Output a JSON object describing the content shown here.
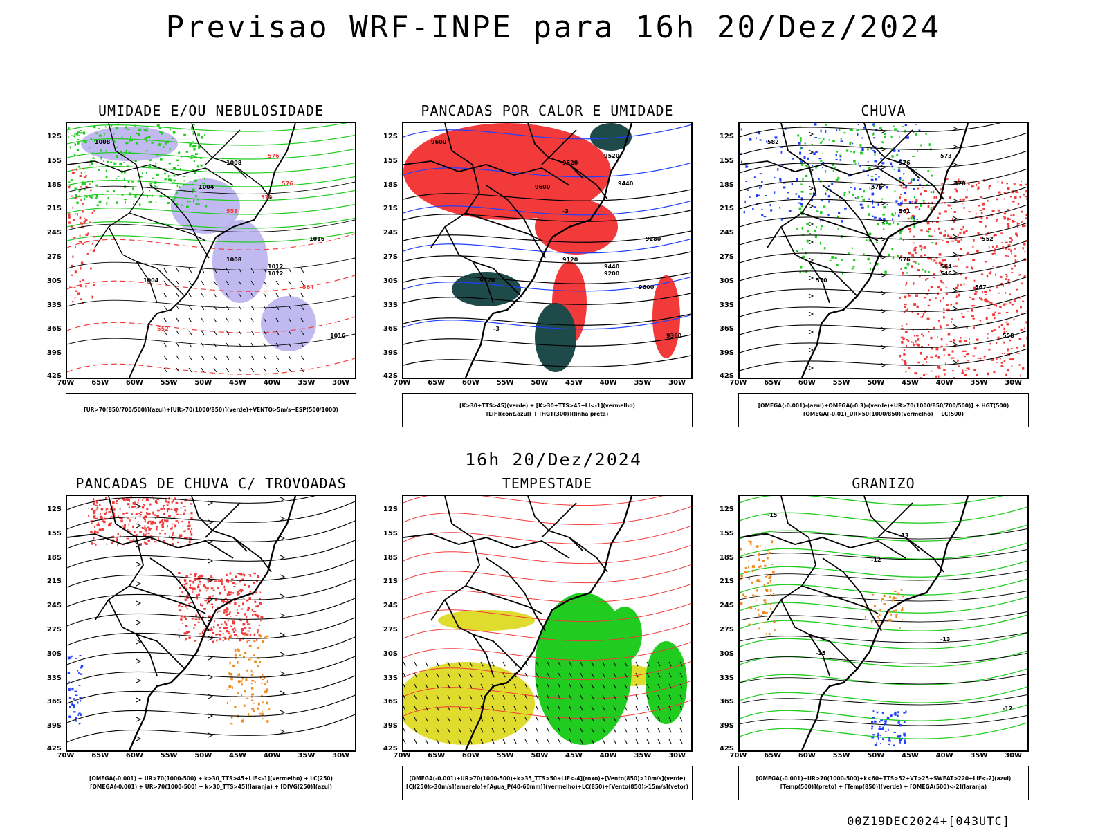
{
  "title": "Previsao WRF-INPE  para 16h 20/Dez/2024",
  "subtitle": "16h 20/Dez/2024",
  "footer": "00Z19DEC2024+[043UTC]",
  "lat_labels": [
    "12S",
    "15S",
    "18S",
    "21S",
    "24S",
    "27S",
    "30S",
    "33S",
    "36S",
    "39S",
    "42S"
  ],
  "lon_labels": [
    "70W",
    "65W",
    "60W",
    "55W",
    "50W",
    "45W",
    "40W",
    "35W",
    "30W"
  ],
  "colors": {
    "red": "#f23a3a",
    "green": "#1fcc1f",
    "blue": "#1f3fff",
    "lavender": "#b9b3f0",
    "darkteal": "#1f4a4a",
    "yellow": "#e0dc2e",
    "orange": "#ee8a1e",
    "black": "#000000"
  },
  "panels": [
    {
      "title": "UMIDADE E/OU NEBULOSIDADE",
      "legend": [
        "[UR>70(850/700/500)](azul)+[UR>70(1000/850)](verde)+VENTO>5m/s+ESP(500/1000)"
      ],
      "labels": [
        "1008",
        "1008",
        "1004",
        "1004",
        "1012",
        "1016",
        "1016",
        "1012",
        "1008",
        "576",
        "576",
        "564",
        "558",
        "552",
        "570"
      ]
    },
    {
      "title": "PANCADAS POR CALOR E UMIDADE",
      "legend": [
        "[K>30+TTS>45](verde) + [K>30+TTS>45+LI<-1](vermelho)",
        "[LIF](cont.azul) + [HGT(300)](linha preta)"
      ],
      "labels": [
        "9600",
        "9520",
        "9600",
        "9520",
        "9440",
        "9360",
        "9280",
        "9200",
        "9120",
        "9520",
        "9440",
        "9600",
        "-3",
        "-3"
      ]
    },
    {
      "title": "CHUVA",
      "legend": [
        "[OMEGA(-0.001)-(azul)+OMEGA(-0.3)-(verde)+UR>70(1000/850/700/500)] + HGT(500)",
        "[OMEGA(-0.01)_UR>50(1000/850)(vermelho) + LC(500)"
      ],
      "labels": [
        "582",
        "576",
        "576",
        "570",
        "564",
        "558",
        "552",
        "546",
        "576",
        "573",
        "570",
        "567",
        "561"
      ]
    },
    {
      "title": "PANCADAS DE CHUVA C/ TROVOADAS",
      "legend": [
        "[OMEGA(-0.001) + UR>70(1000-500) + k>30_TTS>45+LIF<-1](vermelho) + LC(250)",
        "[OMEGA(-0.001) + UR>70(1000-500) + k>30_TTS>45](laranja) + [DIVG(250)](azul)"
      ],
      "labels": []
    },
    {
      "title": "TEMPESTADE",
      "legend": [
        "[OMEGA(-0.001)+UR>70(1000-500)+k>35_TTS>50+LIF<-4](roxo)+[Vento(850)>10m/s](verde)",
        "[CJ(250)>30m/s](amarelo)+[Agua_P(40-60mm)](vermelho)+LC(850)+[Vento(850)>15m/s](vetor)"
      ],
      "labels": []
    },
    {
      "title": "GRANIZO",
      "legend": [
        "[OMEGA(-0.001)+UR>70(1000-500)+k<60+TTS>52+VT>25+SWEAT>220+LIF<-2](azul)",
        "[Temp(500)](preto) + [Temp(850)](verde) + [OMEGA(500)<-2](laranja)"
      ],
      "labels": [
        "-15",
        "-13",
        "-12",
        "-15",
        "-13",
        "-12"
      ]
    }
  ]
}
